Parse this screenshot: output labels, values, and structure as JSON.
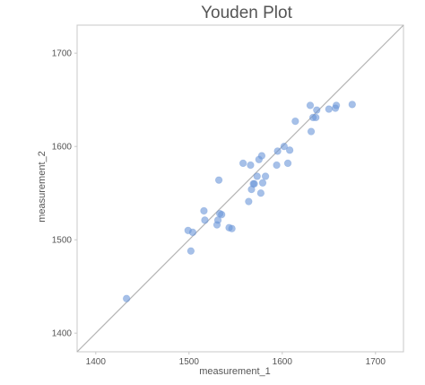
{
  "chart_data": {
    "type": "scatter",
    "title": "Youden Plot",
    "xlabel": "measurement_1",
    "ylabel": "measurement_2",
    "xlim": [
      1380,
      1730
    ],
    "ylim": [
      1380,
      1730
    ],
    "x_ticks": [
      1400,
      1500,
      1600,
      1700
    ],
    "y_ticks": [
      1400,
      1500,
      1600,
      1700
    ],
    "grid": false,
    "reference_line": "y = x",
    "colors": {
      "points": "#6a96d8",
      "reference_line": "#b4b4b4",
      "panel_border": "#c8c8c8",
      "text": "#555555"
    },
    "points": [
      {
        "x": 1433,
        "y": 1437
      },
      {
        "x": 1499,
        "y": 1510
      },
      {
        "x": 1502,
        "y": 1488
      },
      {
        "x": 1504,
        "y": 1508
      },
      {
        "x": 1516,
        "y": 1531
      },
      {
        "x": 1517,
        "y": 1521
      },
      {
        "x": 1530,
        "y": 1516
      },
      {
        "x": 1531,
        "y": 1521
      },
      {
        "x": 1532,
        "y": 1564
      },
      {
        "x": 1533,
        "y": 1528
      },
      {
        "x": 1535,
        "y": 1527
      },
      {
        "x": 1543,
        "y": 1513
      },
      {
        "x": 1546,
        "y": 1512
      },
      {
        "x": 1558,
        "y": 1582
      },
      {
        "x": 1564,
        "y": 1541
      },
      {
        "x": 1566,
        "y": 1580
      },
      {
        "x": 1567,
        "y": 1554
      },
      {
        "x": 1569,
        "y": 1560
      },
      {
        "x": 1570,
        "y": 1560
      },
      {
        "x": 1573,
        "y": 1568
      },
      {
        "x": 1575,
        "y": 1586
      },
      {
        "x": 1577,
        "y": 1550
      },
      {
        "x": 1578,
        "y": 1590
      },
      {
        "x": 1579,
        "y": 1561
      },
      {
        "x": 1582,
        "y": 1568
      },
      {
        "x": 1594,
        "y": 1580
      },
      {
        "x": 1595,
        "y": 1595
      },
      {
        "x": 1602,
        "y": 1600
      },
      {
        "x": 1606,
        "y": 1582
      },
      {
        "x": 1608,
        "y": 1596
      },
      {
        "x": 1614,
        "y": 1627
      },
      {
        "x": 1630,
        "y": 1644
      },
      {
        "x": 1631,
        "y": 1616
      },
      {
        "x": 1633,
        "y": 1631
      },
      {
        "x": 1636,
        "y": 1631
      },
      {
        "x": 1637,
        "y": 1639
      },
      {
        "x": 1650,
        "y": 1640
      },
      {
        "x": 1657,
        "y": 1641
      },
      {
        "x": 1658,
        "y": 1644
      },
      {
        "x": 1675,
        "y": 1645
      }
    ]
  }
}
